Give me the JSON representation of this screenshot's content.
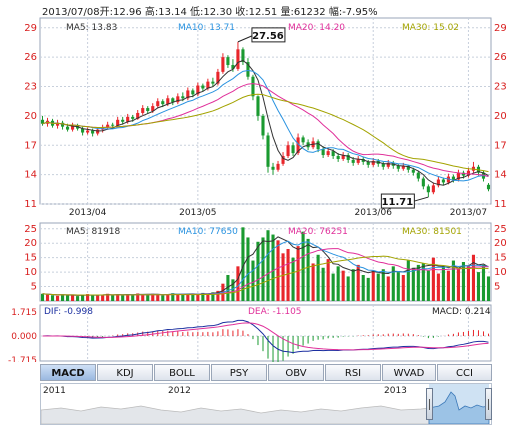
{
  "header": {
    "date": "2013/07/08",
    "open_label": "开:",
    "open": "12.96",
    "high_label": "高:",
    "high": "13.14",
    "low_label": "低:",
    "low": "12.30",
    "close_label": "收:",
    "close": "12.51",
    "volume_label": "量:",
    "volume": "61232",
    "change_label": "幅:",
    "change": "-7.95%"
  },
  "price_legend": [
    {
      "label": "MA5: 13.83",
      "color": "#333333"
    },
    {
      "label": "MA10: 13.71",
      "color": "#2a93e0"
    },
    {
      "label": "MA20: 14.20",
      "color": "#e0309a"
    },
    {
      "label": "MA30: 15.02",
      "color": "#a3a300"
    }
  ],
  "volume_legend": [
    {
      "label": "MA5: 81918",
      "color": "#333333"
    },
    {
      "label": "MA10: 77650",
      "color": "#2a93e0"
    },
    {
      "label": "MA20: 76251",
      "color": "#e0309a"
    },
    {
      "label": "MA30: 81501",
      "color": "#a3a300"
    }
  ],
  "macd_legend": {
    "dif": "DIF: -0.998",
    "dea": "DEA: -1.105",
    "macd": "MACD: 0.214"
  },
  "colors": {
    "up": "#e8262b",
    "down": "#1a9a30",
    "grid": "#c8d0dc",
    "axis_red": "#d81e1e"
  },
  "tabs": [
    {
      "label": "MACD",
      "active": true
    },
    {
      "label": "KDJ"
    },
    {
      "label": "BOLL"
    },
    {
      "label": "PSY"
    },
    {
      "label": "OBV"
    },
    {
      "label": "RSI"
    },
    {
      "label": "WVAD"
    },
    {
      "label": "CCI"
    }
  ],
  "navigator": {
    "years": [
      "2011",
      "2012",
      "2013"
    ]
  },
  "chart_data": [
    {
      "type": "candlestick",
      "y_ticks": [
        11,
        14,
        17,
        20,
        23,
        26,
        29
      ],
      "ylim": [
        11,
        30
      ],
      "x_ticks": [
        "2013/04",
        "2013/05",
        "2013/06",
        "2013/07"
      ],
      "annotations": [
        {
          "text": "27.56",
          "value": 27.56,
          "kind": "max"
        },
        {
          "text": "11.71",
          "value": 11.71,
          "kind": "min"
        }
      ],
      "candles": [
        [
          19.6,
          19.2,
          20.0,
          19.0
        ],
        [
          19.2,
          19.5,
          19.8,
          18.9
        ],
        [
          19.5,
          19.0,
          19.7,
          18.8
        ],
        [
          19.0,
          19.3,
          19.6,
          18.7
        ],
        [
          19.3,
          18.9,
          19.5,
          18.6
        ],
        [
          18.9,
          18.6,
          19.2,
          18.4
        ],
        [
          18.6,
          19.0,
          19.3,
          18.4
        ],
        [
          19.0,
          18.7,
          19.2,
          18.5
        ],
        [
          18.7,
          18.3,
          18.9,
          18.0
        ],
        [
          18.3,
          18.5,
          18.8,
          18.1
        ],
        [
          18.5,
          18.2,
          18.7,
          17.9
        ],
        [
          18.2,
          18.6,
          18.8,
          18.0
        ],
        [
          18.6,
          18.8,
          19.1,
          18.3
        ],
        [
          18.8,
          19.1,
          19.4,
          18.6
        ],
        [
          19.1,
          19.0,
          19.3,
          18.7
        ],
        [
          19.0,
          19.6,
          19.9,
          18.9
        ],
        [
          19.6,
          19.4,
          19.9,
          19.1
        ],
        [
          19.4,
          19.9,
          20.2,
          19.2
        ],
        [
          19.9,
          19.7,
          20.1,
          19.4
        ],
        [
          19.7,
          20.3,
          20.6,
          19.6
        ],
        [
          20.3,
          20.8,
          21.1,
          20.1
        ],
        [
          20.8,
          20.5,
          21.0,
          20.2
        ],
        [
          20.5,
          21.0,
          21.3,
          20.3
        ],
        [
          21.0,
          21.5,
          21.8,
          20.8
        ],
        [
          21.5,
          21.2,
          21.7,
          20.9
        ],
        [
          21.2,
          21.8,
          22.1,
          21.0
        ],
        [
          21.8,
          21.4,
          21.9,
          21.1
        ],
        [
          21.4,
          22.0,
          22.3,
          21.2
        ],
        [
          22.0,
          21.8,
          22.4,
          21.5
        ],
        [
          21.8,
          22.6,
          22.9,
          21.6
        ],
        [
          22.6,
          22.2,
          22.8,
          21.9
        ],
        [
          22.2,
          23.1,
          23.4,
          22.0
        ],
        [
          23.1,
          22.8,
          23.3,
          22.5
        ],
        [
          22.8,
          23.5,
          23.8,
          22.6
        ],
        [
          23.5,
          23.3,
          23.9,
          23.0
        ],
        [
          23.3,
          24.5,
          24.8,
          23.1
        ],
        [
          24.5,
          26.0,
          26.4,
          24.3
        ],
        [
          26.0,
          25.2,
          26.2,
          24.9
        ],
        [
          25.2,
          24.8,
          25.8,
          24.5
        ],
        [
          24.8,
          26.8,
          27.56,
          24.6
        ],
        [
          26.8,
          25.5,
          27.0,
          25.2
        ],
        [
          25.5,
          24.0,
          25.9,
          23.7
        ],
        [
          24.0,
          22.0,
          24.2,
          21.6
        ],
        [
          22.0,
          20.0,
          22.1,
          19.5
        ],
        [
          20.0,
          18.0,
          20.2,
          17.6
        ],
        [
          18.0,
          14.8,
          18.3,
          14.2
        ],
        [
          14.8,
          14.5,
          15.2,
          14.0
        ],
        [
          14.5,
          15.1,
          15.4,
          14.3
        ],
        [
          15.1,
          15.9,
          16.3,
          14.9
        ],
        [
          15.9,
          17.0,
          17.4,
          15.7
        ],
        [
          17.0,
          16.2,
          17.3,
          15.9
        ],
        [
          16.2,
          17.8,
          18.2,
          16.0
        ],
        [
          17.8,
          17.3,
          18.0,
          17.0
        ],
        [
          17.3,
          16.8,
          17.6,
          16.5
        ],
        [
          16.8,
          17.4,
          17.8,
          16.6
        ],
        [
          17.4,
          16.6,
          17.6,
          16.3
        ],
        [
          16.6,
          16.0,
          16.9,
          15.7
        ],
        [
          16.0,
          16.4,
          16.7,
          15.8
        ],
        [
          16.4,
          15.9,
          16.6,
          15.6
        ],
        [
          15.9,
          15.6,
          16.2,
          15.3
        ],
        [
          15.6,
          16.0,
          16.3,
          15.4
        ],
        [
          16.0,
          15.5,
          16.2,
          15.2
        ],
        [
          15.5,
          15.2,
          15.8,
          14.9
        ],
        [
          15.2,
          15.6,
          15.9,
          15.0
        ],
        [
          15.6,
          15.3,
          15.8,
          15.0
        ],
        [
          15.3,
          15.0,
          15.5,
          14.7
        ],
        [
          15.0,
          15.4,
          15.7,
          14.8
        ],
        [
          15.4,
          15.1,
          15.6,
          14.8
        ],
        [
          15.1,
          14.8,
          15.3,
          14.5
        ],
        [
          14.8,
          15.2,
          15.5,
          14.6
        ],
        [
          15.2,
          14.9,
          15.4,
          14.6
        ],
        [
          14.9,
          14.6,
          15.1,
          14.3
        ],
        [
          14.6,
          14.9,
          15.2,
          14.4
        ],
        [
          14.9,
          14.5,
          15.0,
          14.2
        ],
        [
          14.5,
          14.2,
          14.7,
          13.9
        ],
        [
          14.2,
          13.6,
          14.4,
          13.3
        ],
        [
          13.6,
          12.8,
          13.8,
          12.5
        ],
        [
          12.8,
          12.2,
          13.0,
          11.71
        ],
        [
          12.2,
          12.9,
          13.2,
          12.0
        ],
        [
          12.9,
          13.5,
          13.8,
          12.7
        ],
        [
          13.5,
          13.2,
          13.7,
          12.9
        ],
        [
          13.2,
          13.8,
          14.1,
          13.0
        ],
        [
          13.8,
          13.5,
          14.0,
          13.2
        ],
        [
          13.5,
          14.2,
          14.5,
          13.3
        ],
        [
          14.2,
          13.9,
          14.4,
          13.6
        ],
        [
          13.9,
          14.4,
          14.7,
          13.7
        ],
        [
          14.4,
          14.8,
          15.3,
          14.2
        ],
        [
          14.8,
          14.2,
          15.0,
          13.9
        ],
        [
          14.2,
          13.59,
          14.4,
          13.3
        ],
        [
          12.96,
          12.51,
          13.14,
          12.3
        ]
      ]
    },
    {
      "type": "bar",
      "y_ticks": [
        5,
        10,
        15,
        20,
        25
      ],
      "ylim": [
        0,
        27
      ],
      "values": [
        2.5,
        2.2,
        2.0,
        1.8,
        2.3,
        1.9,
        2.1,
        1.7,
        2.0,
        2.4,
        1.9,
        2.2,
        2.0,
        2.5,
        2.1,
        2.3,
        1.9,
        2.4,
        2.2,
        2.6,
        2.3,
        2.1,
        2.5,
        2.2,
        2.0,
        2.4,
        2.7,
        2.3,
        2.5,
        2.2,
        2.6,
        2.4,
        2.8,
        2.6,
        3.0,
        3.5,
        6.0,
        9.0,
        7.5,
        12.0,
        25.5,
        22.0,
        14.0,
        20.5,
        22.0,
        24.5,
        23.0,
        21.0,
        16.5,
        18.0,
        15.0,
        19.0,
        24.0,
        21.5,
        13.0,
        16.0,
        11.5,
        14.5,
        9.5,
        12.0,
        10.5,
        8.5,
        11.0,
        12.5,
        9.0,
        8.0,
        10.5,
        9.5,
        11.0,
        8.5,
        12.0,
        10.0,
        9.0,
        14.0,
        11.5,
        12.5,
        13.0,
        10.5,
        15.0,
        9.5,
        12.0,
        10.5,
        14.0,
        11.0,
        13.5,
        12.0,
        16.0,
        10.0,
        12.5,
        8.5
      ]
    },
    {
      "type": "macd",
      "y_ticks": [
        "1.715",
        "0.000",
        "-1.715"
      ],
      "ylim": [
        -1.715,
        1.715
      ]
    }
  ]
}
